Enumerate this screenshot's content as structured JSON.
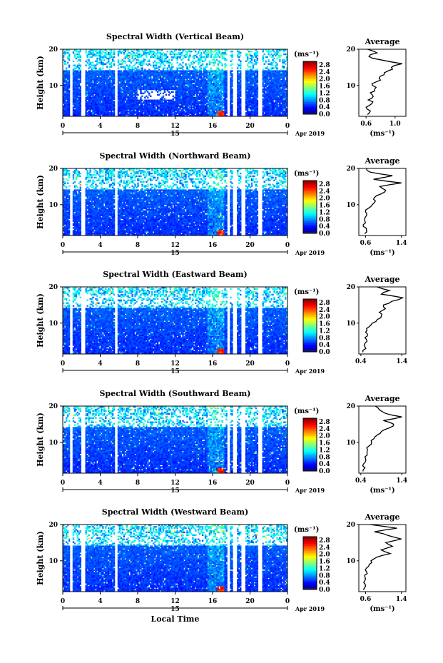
{
  "chart_data": [
    {
      "type": "heatmap",
      "title": "Spectral Width (Vertical Beam)",
      "beam": "Vertical",
      "ylabel": "Height (km)",
      "xlabel": "",
      "x_ticks": [
        "0",
        "4",
        "8",
        "12",
        "16",
        "20",
        "0"
      ],
      "y_ticks": [
        "20",
        "10"
      ],
      "xlim": [
        0,
        24
      ],
      "ylim": [
        1.5,
        20
      ],
      "date_day": "15",
      "date_label": "Apr 2019",
      "colorbar": {
        "unit": "(ms⁻¹)",
        "ticks": [
          "2.8",
          "2.4",
          "2.0",
          "1.6",
          "1.2",
          "0.8",
          "0.4",
          "0.0"
        ],
        "range": [
          0.0,
          3.0
        ]
      },
      "gaps_hours": [
        0.9,
        2.2,
        5.7,
        17.7,
        18.4,
        19.3,
        21.1
      ],
      "average_profile": {
        "title": "Average",
        "xlabel": "(ms⁻¹)",
        "x_ticks": [
          "0.6",
          "1.0"
        ],
        "xlim": [
          0.5,
          1.15
        ],
        "y_ticks": [
          "20",
          "10"
        ],
        "heights": [
          2,
          3,
          4,
          5,
          6,
          7,
          8,
          9,
          10,
          11,
          12,
          13,
          14,
          15,
          16,
          17,
          18,
          19,
          20
        ],
        "values": [
          0.62,
          0.66,
          0.6,
          0.68,
          0.63,
          0.7,
          0.66,
          0.72,
          0.69,
          0.74,
          0.78,
          0.85,
          0.9,
          0.95,
          1.1,
          0.82,
          0.64,
          0.75,
          0.62
        ]
      }
    },
    {
      "type": "heatmap",
      "title": "Spectral Width (Northward Beam)",
      "beam": "Northward",
      "ylabel": "Height (km)",
      "xlabel": "",
      "x_ticks": [
        "0",
        "4",
        "8",
        "12",
        "16",
        "20",
        "0"
      ],
      "y_ticks": [
        "20",
        "10"
      ],
      "xlim": [
        0,
        24
      ],
      "ylim": [
        1.5,
        20
      ],
      "date_day": "15",
      "date_label": "Apr 2019",
      "colorbar": {
        "unit": "(ms⁻¹)",
        "ticks": [
          "2.8",
          "2.4",
          "2.0",
          "1.6",
          "1.2",
          "0.8",
          "0.4",
          "0.0"
        ],
        "range": [
          0.0,
          3.0
        ]
      },
      "gaps_hours": [
        0.9,
        2.2,
        5.7,
        17.7,
        18.4,
        19.3,
        21.1
      ],
      "average_profile": {
        "title": "Average",
        "xlabel": "(ms⁻¹)",
        "x_ticks": [
          "0.6",
          "1.4"
        ],
        "xlim": [
          0.45,
          1.5
        ],
        "y_ticks": [
          "20",
          "10"
        ],
        "heights": [
          2,
          3,
          4,
          5,
          6,
          7,
          8,
          9,
          10,
          11,
          12,
          13,
          14,
          15,
          16,
          17,
          18,
          19,
          20
        ],
        "values": [
          0.58,
          0.62,
          0.55,
          0.6,
          0.58,
          0.62,
          0.6,
          0.66,
          0.75,
          0.82,
          0.8,
          0.95,
          1.05,
          0.92,
          1.4,
          0.78,
          1.2,
          0.7,
          0.62
        ]
      }
    },
    {
      "type": "heatmap",
      "title": "Spectral Width (Eastward Beam)",
      "beam": "Eastward",
      "ylabel": "Height (km)",
      "xlabel": "",
      "x_ticks": [
        "0",
        "4",
        "8",
        "12",
        "16",
        "20",
        "0"
      ],
      "y_ticks": [
        "20",
        "10"
      ],
      "xlim": [
        0,
        24
      ],
      "ylim": [
        1.5,
        20
      ],
      "date_day": "15",
      "date_label": "Apr 2019",
      "colorbar": {
        "unit": "(ms⁻¹)",
        "ticks": [
          "2.8",
          "2.4",
          "2.0",
          "1.6",
          "1.2",
          "0.8",
          "0.4",
          "0.0"
        ],
        "range": [
          0.0,
          3.0
        ]
      },
      "gaps_hours": [
        0.9,
        2.2,
        5.7,
        17.7,
        18.4,
        19.3,
        21.1
      ],
      "average_profile": {
        "title": "Average",
        "xlabel": "",
        "x_ticks": [
          "0.4",
          "1.4"
        ],
        "xlim": [
          0.35,
          1.5
        ],
        "y_ticks": [
          "20",
          "10"
        ],
        "heights": [
          2,
          3,
          4,
          5,
          6,
          7,
          8,
          9,
          10,
          11,
          12,
          13,
          14,
          15,
          16,
          17,
          18,
          19,
          20
        ],
        "values": [
          0.45,
          0.52,
          0.48,
          0.55,
          0.5,
          0.56,
          0.55,
          0.6,
          0.68,
          0.8,
          0.9,
          0.85,
          1.0,
          0.95,
          1.15,
          1.42,
          0.9,
          1.1,
          0.8
        ]
      }
    },
    {
      "type": "heatmap",
      "title": "Spectral Width (Southward Beam)",
      "beam": "Southward",
      "ylabel": "Height (km)",
      "xlabel": "",
      "x_ticks": [
        "0",
        "4",
        "8",
        "12",
        "16",
        "20",
        "0"
      ],
      "y_ticks": [
        "20",
        "10"
      ],
      "xlim": [
        0,
        24
      ],
      "ylim": [
        1.5,
        20
      ],
      "date_day": "15",
      "date_label": "Apr 2019",
      "colorbar": {
        "unit": "(ms⁻¹)",
        "ticks": [
          "2.8",
          "2.4",
          "2.0",
          "1.6",
          "1.2",
          "0.8",
          "0.4",
          "0.0"
        ],
        "range": [
          0.0,
          3.0
        ]
      },
      "gaps_hours": [
        0.9,
        2.2,
        5.7,
        17.7,
        18.4,
        19.3,
        21.1
      ],
      "average_profile": {
        "title": "Average",
        "xlabel": "(ms⁻¹)",
        "x_ticks": [
          "0.4",
          "1.4"
        ],
        "xlim": [
          0.35,
          1.5
        ],
        "y_ticks": [
          "20",
          "10"
        ],
        "heights": [
          2,
          3,
          4,
          5,
          6,
          7,
          8,
          9,
          10,
          11,
          12,
          13,
          14,
          15,
          16,
          17,
          18,
          19,
          20
        ],
        "values": [
          0.45,
          0.5,
          0.46,
          0.52,
          0.5,
          0.55,
          0.56,
          0.6,
          0.66,
          0.72,
          0.8,
          0.9,
          1.1,
          1.2,
          0.95,
          1.4,
          1.0,
          0.85,
          0.75
        ]
      }
    },
    {
      "type": "heatmap",
      "title": "Spectral Width (Westward Beam)",
      "beam": "Westward",
      "ylabel": "Height (km)",
      "xlabel": "Local Time",
      "x_ticks": [
        "0",
        "4",
        "8",
        "12",
        "16",
        "20",
        "0"
      ],
      "y_ticks": [
        "20",
        "10"
      ],
      "xlim": [
        0,
        24
      ],
      "ylim": [
        1.5,
        20
      ],
      "date_day": "15",
      "date_label": "Apr 2019",
      "colorbar": {
        "unit": "(ms⁻¹)",
        "ticks": [
          "2.8",
          "2.4",
          "2.0",
          "1.6",
          "1.2",
          "0.8",
          "0.4",
          "0.0"
        ],
        "range": [
          0.0,
          3.0
        ]
      },
      "gaps_hours": [
        0.9,
        2.2,
        5.7,
        17.7,
        18.4,
        19.3,
        21.1
      ],
      "average_profile": {
        "title": "Average",
        "xlabel": "(ms⁻¹)",
        "x_ticks": [
          "0.6",
          "1.4"
        ],
        "xlim": [
          0.45,
          1.5
        ],
        "y_ticks": [
          "20",
          "10"
        ],
        "heights": [
          2,
          3,
          4,
          5,
          6,
          7,
          8,
          9,
          10,
          11,
          12,
          13,
          14,
          15,
          16,
          17,
          18,
          19,
          20
        ],
        "values": [
          0.55,
          0.6,
          0.56,
          0.6,
          0.58,
          0.62,
          0.62,
          0.68,
          0.72,
          0.85,
          1.15,
          0.95,
          1.2,
          1.05,
          1.4,
          1.1,
          0.8,
          1.3,
          0.7
        ]
      }
    }
  ]
}
